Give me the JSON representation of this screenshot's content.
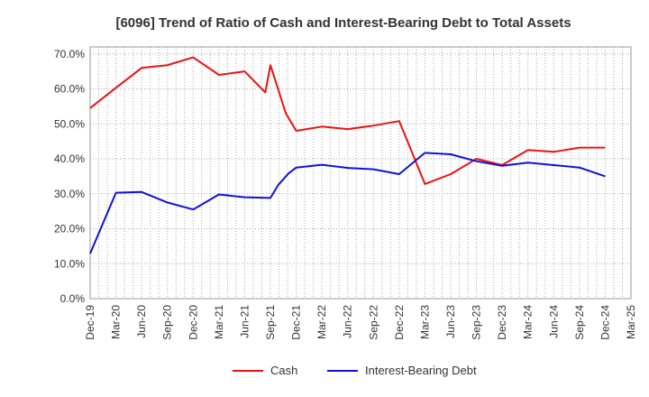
{
  "chart_data": {
    "type": "line",
    "title": "[6096]  Trend of Ratio of Cash and Interest-Bearing Debt to Total Assets",
    "xlabel": "",
    "ylabel": "",
    "ylim": [
      0,
      72
    ],
    "y_ticks": [
      "0.0%",
      "10.0%",
      "20.0%",
      "30.0%",
      "40.0%",
      "50.0%",
      "60.0%",
      "70.0%"
    ],
    "x_tick_labels": [
      "Dec-19",
      "Mar-20",
      "Jun-20",
      "Sep-20",
      "Dec-20",
      "Mar-21",
      "Jun-21",
      "Sep-21",
      "Dec-21",
      "Mar-22",
      "Jun-22",
      "Sep-22",
      "Dec-22",
      "Mar-23",
      "Jun-23",
      "Sep-23",
      "Dec-23",
      "Mar-24",
      "Jun-24",
      "Sep-24",
      "Dec-24",
      "Mar-25"
    ],
    "x": [
      "Dec-19",
      "Mar-20",
      "Jun-20",
      "Sep-20",
      "Dec-20",
      "Mar-21",
      "Jun-21",
      "Sep-21",
      "Dec-21",
      "Mar-22",
      "Jun-22",
      "Sep-22",
      "Dec-22",
      "Mar-23",
      "Jun-23",
      "Sep-23",
      "Dec-23",
      "Mar-24",
      "Jun-24",
      "Sep-24",
      "Dec-24"
    ],
    "grid": true,
    "legend_position": "bottom",
    "series": [
      {
        "name": "Cash",
        "color": "#ee1111",
        "values": [
          54.5,
          60.3,
          66.0,
          66.8,
          69.0,
          64.0,
          65.0,
          66.8,
          48.0,
          49.2,
          48.5,
          49.5,
          50.8,
          32.8,
          35.6,
          40.0,
          38.2,
          42.5,
          42.0,
          43.2,
          43.2
        ],
        "extra_points": [
          [
            6.8,
            59.0
          ],
          [
            7.6,
            53.0
          ]
        ]
      },
      {
        "name": "Interest-Bearing Debt",
        "color": "#1111dd",
        "values": [
          12.9,
          30.3,
          30.5,
          27.5,
          25.5,
          29.8,
          29.0,
          28.8,
          37.5,
          38.3,
          37.4,
          37.0,
          35.6,
          41.7,
          41.3,
          39.3,
          38.0,
          38.9,
          38.2,
          37.5,
          35.0
        ],
        "extra_points": [
          [
            7.3,
            32.5
          ],
          [
            7.7,
            35.8
          ]
        ]
      }
    ]
  }
}
